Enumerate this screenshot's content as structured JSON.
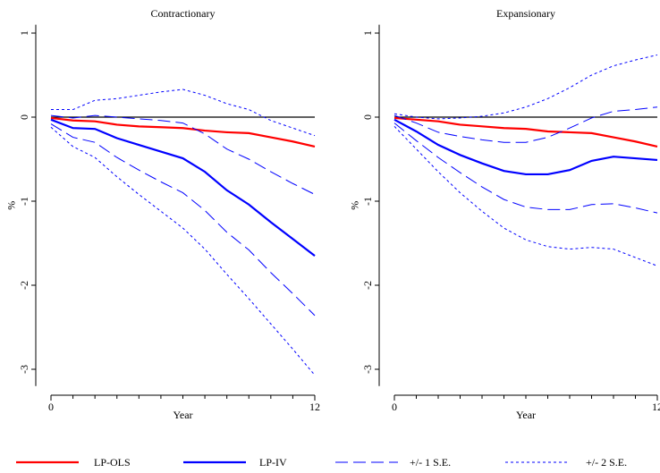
{
  "y_label": "%",
  "x_label": "Year",
  "legend": [
    {
      "name": "LP-OLS",
      "color": "#ff0000",
      "dash": "solid"
    },
    {
      "name": "LP-IV",
      "color": "#0000ff",
      "dash": "solid"
    },
    {
      "name": "+/- 1 S.E.",
      "color": "#0000ff",
      "dash": "long"
    },
    {
      "name": "+/- 2 S.E.",
      "color": "#0000ff",
      "dash": "short"
    }
  ],
  "chart_data": [
    {
      "type": "line",
      "title": "Contractionary",
      "x": [
        0,
        1,
        2,
        3,
        4,
        5,
        6,
        7,
        8,
        9,
        10,
        11,
        12
      ],
      "xlim": [
        0,
        12
      ],
      "xticks": [
        0,
        12
      ],
      "ylim": [
        -3.2,
        1.1
      ],
      "yticks": [
        -3,
        -2,
        -1,
        0,
        1
      ],
      "reference_line": 0,
      "series": [
        {
          "color": "#ff0000",
          "dash": "solid",
          "values": [
            -0.01,
            -0.04,
            -0.05,
            -0.09,
            -0.11,
            -0.12,
            -0.13,
            -0.16,
            -0.18,
            -0.19,
            -0.24,
            -0.29,
            -0.35
          ]
        },
        {
          "color": "#0000ff",
          "dash": "solid",
          "values": [
            -0.03,
            -0.13,
            -0.14,
            -0.25,
            -0.33,
            -0.41,
            -0.49,
            -0.65,
            -0.87,
            -1.04,
            -1.25,
            -1.45,
            -1.65
          ]
        },
        {
          "color": "#0000ff",
          "dash": "long",
          "values": [
            0.02,
            -0.01,
            0.02,
            0,
            -0.02,
            -0.04,
            -0.07,
            -0.2,
            -0.38,
            -0.5,
            -0.65,
            -0.79,
            -0.92
          ]
        },
        {
          "color": "#0000ff",
          "dash": "long",
          "values": [
            -0.08,
            -0.24,
            -0.3,
            -0.48,
            -0.63,
            -0.77,
            -0.9,
            -1.11,
            -1.37,
            -1.58,
            -1.85,
            -2.1,
            -2.36
          ]
        },
        {
          "color": "#0000ff",
          "dash": "short",
          "values": [
            0.09,
            0.09,
            0.2,
            0.22,
            0.26,
            0.3,
            0.33,
            0.26,
            0.16,
            0.09,
            -0.04,
            -0.13,
            -0.22
          ]
        },
        {
          "color": "#0000ff",
          "dash": "short",
          "values": [
            -0.12,
            -0.35,
            -0.48,
            -0.71,
            -0.92,
            -1.12,
            -1.32,
            -1.57,
            -1.87,
            -2.16,
            -2.46,
            -2.76,
            -3.07
          ]
        }
      ]
    },
    {
      "type": "line",
      "title": "Expansionary",
      "x": [
        0,
        1,
        2,
        3,
        4,
        5,
        6,
        7,
        8,
        9,
        10,
        11,
        12
      ],
      "xlim": [
        0,
        12
      ],
      "xticks": [
        0,
        12
      ],
      "ylim": [
        -3.2,
        1.1
      ],
      "yticks": [
        -3,
        -2,
        -1,
        0,
        1
      ],
      "reference_line": 0,
      "series": [
        {
          "color": "#ff0000",
          "dash": "solid",
          "values": [
            -0.01,
            -0.03,
            -0.05,
            -0.09,
            -0.11,
            -0.13,
            -0.14,
            -0.17,
            -0.18,
            -0.19,
            -0.24,
            -0.29,
            -0.35
          ]
        },
        {
          "color": "#0000ff",
          "dash": "solid",
          "values": [
            -0.03,
            -0.17,
            -0.33,
            -0.45,
            -0.55,
            -0.64,
            -0.68,
            -0.68,
            -0.63,
            -0.52,
            -0.47,
            -0.49,
            -0.51
          ]
        },
        {
          "color": "#0000ff",
          "dash": "long",
          "values": [
            0.02,
            -0.07,
            -0.18,
            -0.23,
            -0.27,
            -0.3,
            -0.3,
            -0.24,
            -0.13,
            -0.01,
            0.07,
            0.09,
            0.12
          ]
        },
        {
          "color": "#0000ff",
          "dash": "long",
          "values": [
            -0.07,
            -0.28,
            -0.48,
            -0.66,
            -0.83,
            -0.98,
            -1.07,
            -1.1,
            -1.1,
            -1.04,
            -1.03,
            -1.08,
            -1.14
          ]
        },
        {
          "color": "#0000ff",
          "dash": "short",
          "values": [
            0.04,
            0,
            -0.02,
            -0.01,
            0.01,
            0.05,
            0.12,
            0.22,
            0.35,
            0.5,
            0.61,
            0.68,
            0.74
          ]
        },
        {
          "color": "#0000ff",
          "dash": "short",
          "values": [
            -0.11,
            -0.38,
            -0.65,
            -0.9,
            -1.12,
            -1.32,
            -1.46,
            -1.54,
            -1.57,
            -1.55,
            -1.57,
            -1.67,
            -1.77
          ]
        }
      ]
    }
  ]
}
